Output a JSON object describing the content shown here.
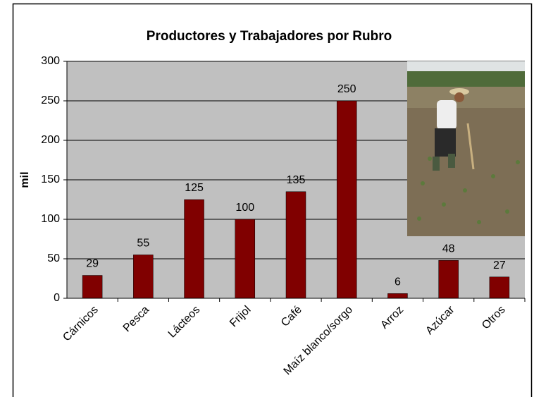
{
  "chart_data": {
    "type": "bar",
    "title": "Productores y Trabajadores por Rubro",
    "y_label": "mil",
    "categories": [
      "Cárnicos",
      "Pesca",
      "Lácteos",
      "Frijol",
      "Café",
      "Maíz blanco/sorgo",
      "Arroz",
      "Azúcar",
      "Otros"
    ],
    "values": [
      29,
      55,
      125,
      100,
      135,
      250,
      6,
      48,
      27
    ],
    "color": "#800000",
    "ylim": [
      0,
      300
    ],
    "yticks": [
      0,
      50,
      100,
      150,
      200,
      250,
      300
    ],
    "grid": true
  }
}
